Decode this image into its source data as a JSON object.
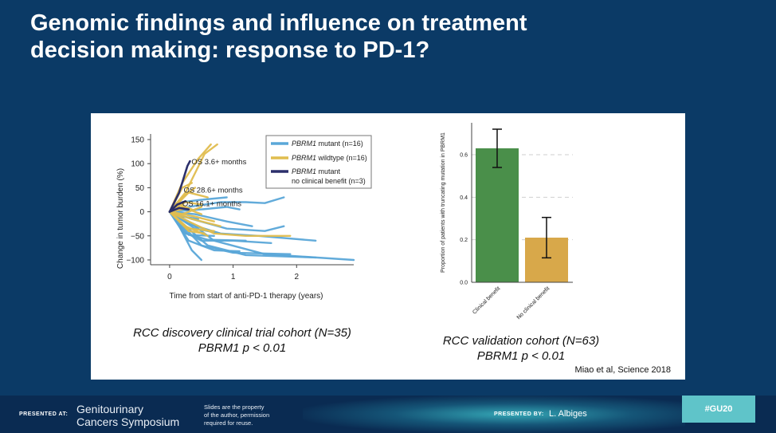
{
  "slide": {
    "title_line1": "Genomic findings and influence on treatment",
    "title_line2": "decision making: response to PD-1?"
  },
  "left_chart": {
    "y_label": "Change in tumor burden (%)",
    "x_label": "Time from start of anti-PD-1 therapy (years)",
    "y_ticks": [
      "150",
      "100",
      "50",
      "0",
      "−50",
      "−100"
    ],
    "x_ticks": [
      "0",
      "1",
      "2"
    ],
    "legend": [
      {
        "gene": "PBRM1",
        "text": " mutant (n=16)",
        "color": "#5aa7d8"
      },
      {
        "gene": "PBRM1",
        "text": " wildtype (n=16)",
        "color": "#e0bd4f"
      },
      {
        "gene": "PBRM1",
        "text": " mutant",
        "text2": "no clinical benefit (n=3)",
        "color": "#2b2f6b"
      }
    ],
    "annotations": [
      "OS 3.6+ months",
      "OS 28.6+ months",
      "OS 16.1+ months"
    ],
    "caption_line1": "RCC discovery clinical trial cohort (N=35)",
    "caption_line2": "PBRM1 p < 0.01"
  },
  "right_chart": {
    "y_label": "Proportion of patients with truncating mutation in PBRM1",
    "y_ticks": [
      "0.6",
      "0.4",
      "0.2",
      "0.0"
    ],
    "caption_line1": "RCC validation cohort (N=63)",
    "caption_line2": "PBRM1 p < 0.01"
  },
  "chart_data": [
    {
      "type": "line",
      "xlabel": "Time from start of anti-PD-1 therapy (years)",
      "ylabel": "Change in tumor burden (%)",
      "ylim": [
        -110,
        155
      ],
      "xlim": [
        -0.3,
        2.9
      ],
      "legend": "top-right",
      "series": [
        {
          "name": "PBRM1 mutant (n=16)",
          "color": "#5aa7d8",
          "lines": [
            [
              [
                0,
                0
              ],
              [
                0.3,
                -20
              ],
              [
                0.7,
                -60
              ],
              [
                1.5,
                -88
              ],
              [
                2.9,
                -100
              ]
            ],
            [
              [
                0,
                0
              ],
              [
                0.25,
                -30
              ],
              [
                0.6,
                -70
              ],
              [
                1.2,
                -90
              ],
              [
                2.3,
                -95
              ]
            ],
            [
              [
                0,
                0
              ],
              [
                0.2,
                -40
              ],
              [
                0.5,
                -60
              ],
              [
                1.0,
                -60
              ],
              [
                1.6,
                -65
              ]
            ],
            [
              [
                0,
                0
              ],
              [
                0.3,
                -25
              ],
              [
                0.8,
                -45
              ],
              [
                1.4,
                -50
              ],
              [
                2.3,
                -60
              ]
            ],
            [
              [
                0,
                0
              ],
              [
                0.35,
                -15
              ],
              [
                0.9,
                -35
              ],
              [
                1.5,
                -40
              ],
              [
                1.8,
                -30
              ]
            ],
            [
              [
                0,
                0
              ],
              [
                0.3,
                10
              ],
              [
                0.8,
                20
              ],
              [
                1.2,
                20
              ],
              [
                1.5,
                18
              ],
              [
                1.8,
                30
              ]
            ],
            [
              [
                0,
                0
              ],
              [
                0.2,
                20
              ],
              [
                0.5,
                25
              ],
              [
                0.9,
                30
              ]
            ],
            [
              [
                0,
                0
              ],
              [
                0.15,
                -30
              ],
              [
                0.35,
                -80
              ],
              [
                0.5,
                -100
              ]
            ],
            [
              [
                0,
                0
              ],
              [
                0.4,
                -5
              ],
              [
                0.9,
                -20
              ],
              [
                1.3,
                -30
              ]
            ],
            [
              [
                0,
                0
              ],
              [
                0.3,
                -60
              ],
              [
                0.7,
                -80
              ],
              [
                1.1,
                -82
              ]
            ],
            [
              [
                0,
                0
              ],
              [
                0.25,
                -45
              ],
              [
                0.6,
                -58
              ],
              [
                1.2,
                -60
              ]
            ],
            [
              [
                0,
                0
              ],
              [
                0.4,
                -35
              ],
              [
                0.8,
                -45
              ]
            ],
            [
              [
                0,
                0
              ],
              [
                0.5,
                5
              ],
              [
                0.9,
                10
              ],
              [
                1.1,
                5
              ]
            ],
            [
              [
                0,
                0
              ],
              [
                0.2,
                -10
              ],
              [
                0.45,
                -15
              ]
            ],
            [
              [
                0,
                0
              ],
              [
                0.5,
                -70
              ],
              [
                1.0,
                -85
              ],
              [
                1.9,
                -88
              ]
            ],
            [
              [
                0,
                0
              ],
              [
                0.3,
                -48
              ],
              [
                0.7,
                -50
              ]
            ]
          ]
        },
        {
          "name": "PBRM1 wildtype (n=16)",
          "color": "#e0bd4f",
          "lines": [
            [
              [
                0,
                0
              ],
              [
                0.2,
                60
              ],
              [
                0.45,
                110
              ],
              [
                0.65,
                140
              ]
            ],
            [
              [
                0,
                0
              ],
              [
                0.25,
                40
              ],
              [
                0.55,
                120
              ],
              [
                0.75,
                140
              ]
            ],
            [
              [
                0,
                0
              ],
              [
                0.2,
                30
              ],
              [
                0.4,
                50
              ]
            ],
            [
              [
                0,
                0
              ],
              [
                0.3,
                40
              ],
              [
                0.6,
                30
              ]
            ],
            [
              [
                0,
                0
              ],
              [
                0.3,
                -20
              ],
              [
                0.7,
                -45
              ],
              [
                1.2,
                -50
              ],
              [
                1.9,
                -50
              ]
            ],
            [
              [
                0,
                0
              ],
              [
                0.25,
                -30
              ],
              [
                0.6,
                -50
              ]
            ],
            [
              [
                0,
                0
              ],
              [
                0.2,
                10
              ],
              [
                0.5,
                -5
              ]
            ],
            [
              [
                0,
                0
              ],
              [
                0.35,
                -15
              ],
              [
                0.8,
                -30
              ]
            ],
            [
              [
                0,
                0
              ],
              [
                0.15,
                15
              ],
              [
                0.35,
                5
              ]
            ],
            [
              [
                0,
                0
              ],
              [
                0.3,
                -40
              ],
              [
                0.55,
                -45
              ]
            ],
            [
              [
                0,
                0
              ],
              [
                0.2,
                50
              ],
              [
                0.35,
                60
              ]
            ],
            [
              [
                0,
                0
              ],
              [
                0.4,
                -10
              ],
              [
                0.7,
                -20
              ]
            ],
            [
              [
                0,
                0
              ],
              [
                0.2,
                -5
              ],
              [
                0.5,
                10
              ]
            ],
            [
              [
                0,
                0
              ],
              [
                0.25,
                20
              ],
              [
                0.5,
                15
              ]
            ],
            [
              [
                0,
                0
              ],
              [
                0.3,
                -35
              ],
              [
                0.7,
                -40
              ]
            ],
            [
              [
                0,
                0
              ],
              [
                0.2,
                5
              ]
            ]
          ]
        },
        {
          "name": "PBRM1 mutant no clinical benefit (n=3)",
          "color": "#2b2f6b",
          "lines": [
            [
              [
                0,
                0
              ],
              [
                0.15,
                40
              ],
              [
                0.28,
                95
              ],
              [
                0.32,
                105
              ]
            ],
            [
              [
                0,
                0
              ],
              [
                0.12,
                15
              ],
              [
                0.25,
                22
              ]
            ],
            [
              [
                0,
                0
              ],
              [
                0.15,
                8
              ],
              [
                0.3,
                5
              ]
            ]
          ]
        }
      ]
    },
    {
      "type": "bar",
      "ylabel": "Proportion of patients with truncating mutation in PBRM1",
      "categories": [
        "Clinical benefit",
        "No clinical benefit"
      ],
      "values": [
        0.63,
        0.21
      ],
      "error_low": [
        0.54,
        0.115
      ],
      "error_high": [
        0.72,
        0.305
      ],
      "colors": [
        "#4a8f4a",
        "#d8a84a"
      ],
      "ylim": [
        0,
        0.75
      ]
    }
  ],
  "citation": "Miao et al, Science 2018",
  "footer": {
    "presented_at": "PRESENTED AT:",
    "symposium_line1": "Genitourinary",
    "symposium_line2": "Cancers Symposium",
    "note_line1": "Slides are the property",
    "note_line2": "of the author, permission",
    "note_line3": "required for reuse.",
    "presented_by": "PRESENTED BY:",
    "presenter": "L. Albiges",
    "hashtag": "#GU20"
  }
}
